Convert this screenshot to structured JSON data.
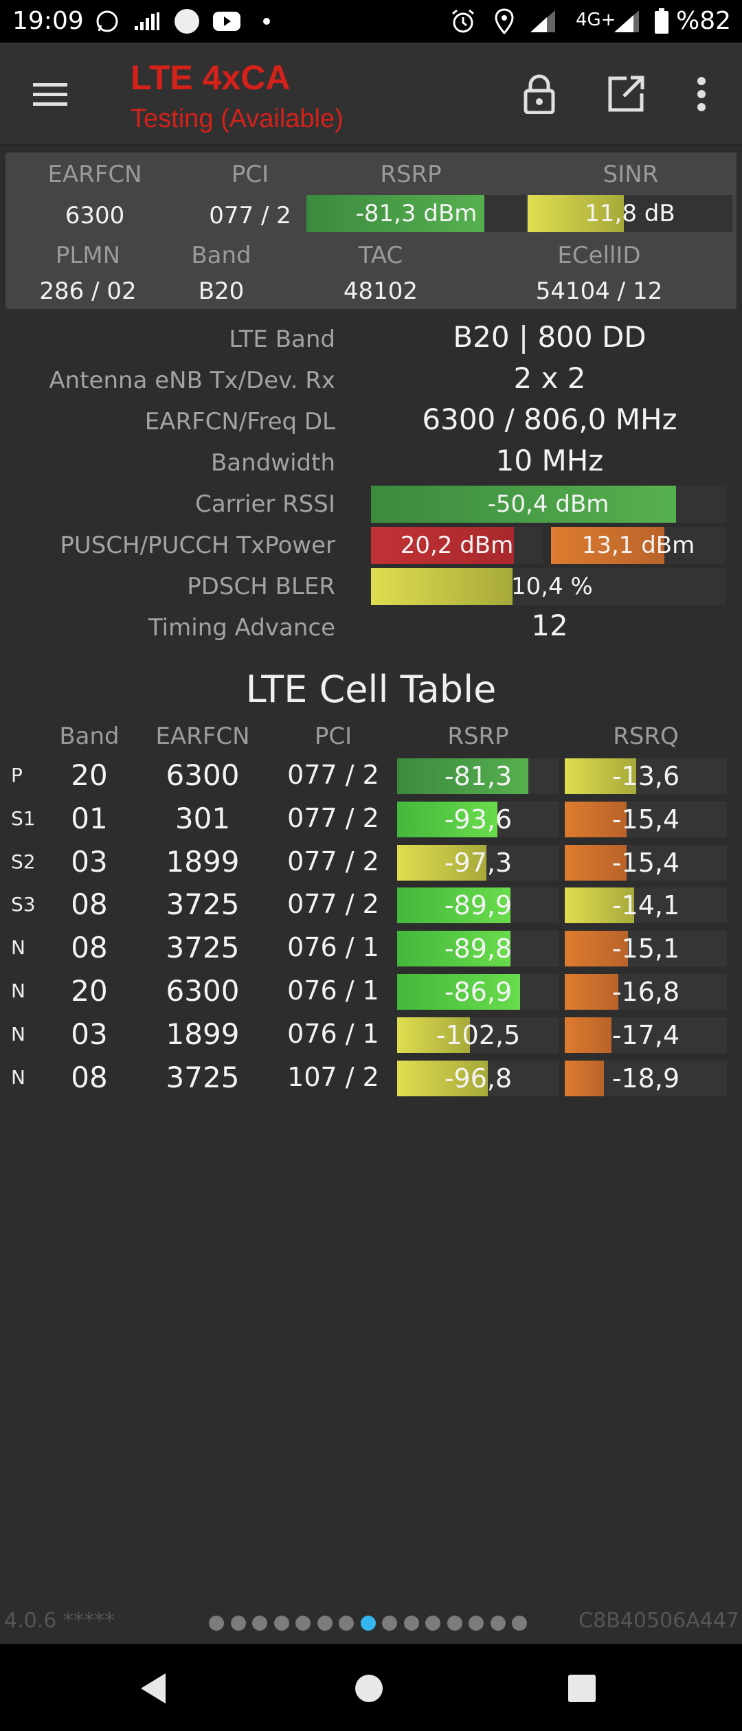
{
  "status_bar": {
    "time": "19:09",
    "network": "4G+",
    "battery": "%82",
    "icons": [
      "whatsapp-icon",
      "signal-bars-icon",
      "circle-icon",
      "youtube-icon",
      "dot-icon",
      "alarm-icon",
      "location-icon",
      "signal-icon",
      "signal-icon",
      "battery-icon"
    ]
  },
  "app_bar": {
    "title": "LTE 4xCA",
    "subtitle": "Testing (Available)",
    "accent_color": "#d4211a"
  },
  "summary": {
    "headers": {
      "earfcn": "EARFCN",
      "pci": "PCI",
      "rsrp": "RSRP",
      "sinr": "SINR",
      "plmn": "PLMN",
      "band": "Band",
      "tac": "TAC",
      "ecellid": "ECellID"
    },
    "earfcn": "6300",
    "pci": "077 / 2",
    "rsrp": {
      "text": "-81,3 dBm",
      "level": 0.81
    },
    "sinr": {
      "text": "11,8 dB",
      "level": 0.47
    },
    "plmn": "286 / 02",
    "band": "B20",
    "tac": "48102",
    "ecellid": "54104 / 12"
  },
  "details": {
    "lte_band_label": "LTE Band",
    "lte_band_value": "B20 | 800 DD",
    "antenna_label": "Antenna eNB Tx/Dev. Rx",
    "antenna_value": "2 x 2",
    "earfcn_freq_label": "EARFCN/Freq DL",
    "earfcn_freq_value": "6300 / 806,0 MHz",
    "bandwidth_label": "Bandwidth",
    "bandwidth_value": "10 MHz",
    "rssi_label": "Carrier RSSI",
    "rssi": {
      "text": "-50,4 dBm",
      "level": 0.86
    },
    "txpower_label": "PUSCH/PUCCH TxPower",
    "pusch": {
      "text": "20,2 dBm",
      "level": 0.83
    },
    "pucch": {
      "text": "13,1 dBm",
      "level": 0.65
    },
    "bler_label": "PDSCH BLER",
    "bler": {
      "text": "10,4 %",
      "level": 0.4
    },
    "ta_label": "Timing Advance",
    "ta_value": "12"
  },
  "cell_table": {
    "title": "LTE Cell Table",
    "headers": {
      "band": "Band",
      "earfcn": "EARFCN",
      "pci": "PCI",
      "rsrp": "RSRP",
      "rsrq": "RSRQ"
    },
    "rows": [
      {
        "tag": "P",
        "band": "20",
        "earfcn": "6300",
        "pci": "077 / 2",
        "rsrp": "-81,3",
        "rsrp_level": 0.81,
        "rsrp_color": "green",
        "rsrq": "-13,6",
        "rsrq_level": 0.44,
        "rsrq_color": "yellow"
      },
      {
        "tag": "S1",
        "band": "01",
        "earfcn": "301",
        "pci": "077 / 2",
        "rsrp": "-93,6",
        "rsrp_level": 0.62,
        "rsrp_color": "lgreen",
        "rsrq": "-15,4",
        "rsrq_level": 0.38,
        "rsrq_color": "orange"
      },
      {
        "tag": "S2",
        "band": "03",
        "earfcn": "1899",
        "pci": "077 / 2",
        "rsrp": "-97,3",
        "rsrp_level": 0.55,
        "rsrp_color": "yellow",
        "rsrq": "-15,4",
        "rsrq_level": 0.38,
        "rsrq_color": "orange"
      },
      {
        "tag": "S3",
        "band": "08",
        "earfcn": "3725",
        "pci": "077 / 2",
        "rsrp": "-89,9",
        "rsrp_level": 0.7,
        "rsrp_color": "lgreen",
        "rsrq": "-14,1",
        "rsrq_level": 0.43,
        "rsrq_color": "yellow"
      },
      {
        "tag": "N",
        "band": "08",
        "earfcn": "3725",
        "pci": "076 / 1",
        "rsrp": "-89,8",
        "rsrp_level": 0.7,
        "rsrp_color": "lgreen",
        "rsrq": "-15,1",
        "rsrq_level": 0.39,
        "rsrq_color": "orange"
      },
      {
        "tag": "N",
        "band": "20",
        "earfcn": "6300",
        "pci": "076 / 1",
        "rsrp": "-86,9",
        "rsrp_level": 0.76,
        "rsrp_color": "lgreen",
        "rsrq": "-16,8",
        "rsrq_level": 0.33,
        "rsrq_color": "orange"
      },
      {
        "tag": "N",
        "band": "03",
        "earfcn": "1899",
        "pci": "076 / 1",
        "rsrp": "-102,5",
        "rsrp_level": 0.45,
        "rsrp_color": "yellow",
        "rsrq": "-17,4",
        "rsrq_level": 0.29,
        "rsrq_color": "orange"
      },
      {
        "tag": "N",
        "band": "08",
        "earfcn": "3725",
        "pci": "107 / 2",
        "rsrp": "-96,8",
        "rsrp_level": 0.56,
        "rsrp_color": "yellow",
        "rsrq": "-18,9",
        "rsrq_level": 0.24,
        "rsrq_color": "orange"
      }
    ]
  },
  "footer": {
    "version": "4.0.6 *****",
    "device_id": "C8B40506A447",
    "page_count": 15,
    "active_page": 8
  }
}
